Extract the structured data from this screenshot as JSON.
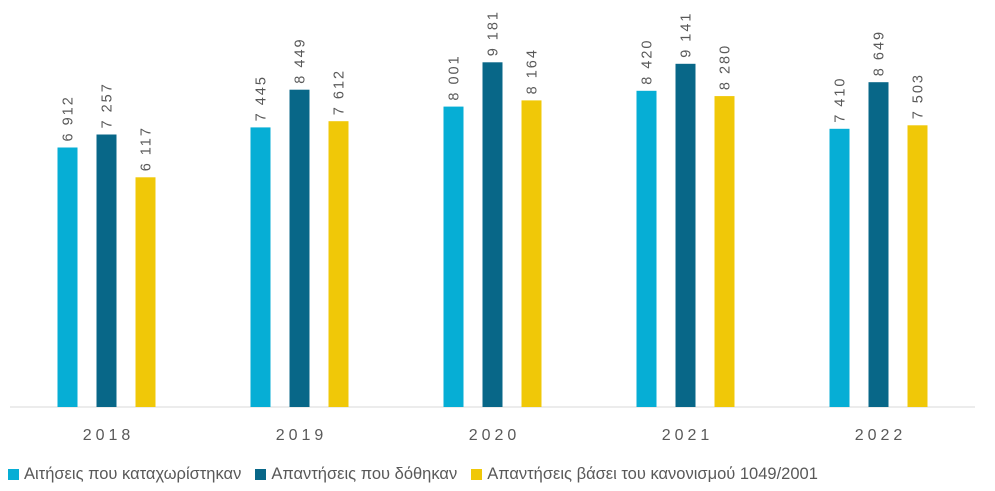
{
  "chart_data": {
    "type": "bar",
    "categories": [
      "2018",
      "2019",
      "2020",
      "2021",
      "2022"
    ],
    "series": [
      {
        "name": "Αιτήσεις που καταχωρίστηκαν",
        "color": "#06aed5",
        "values": [
          6912,
          7445,
          8001,
          8420,
          7410
        ],
        "labels": [
          "6 912",
          "7 445",
          "8 001",
          "8 420",
          "7 410"
        ]
      },
      {
        "name": "Απαντήσεις που δόθηκαν",
        "color": "#086788",
        "values": [
          7257,
          8449,
          9181,
          9141,
          8649
        ],
        "labels": [
          "7 257",
          "8 449",
          "9 181",
          "9 141",
          "8 649"
        ]
      },
      {
        "name": "Απαντήσεις βάσει του κανονισμού 1049/2001",
        "color": "#f0c808",
        "values": [
          6117,
          7612,
          8164,
          8280,
          7503
        ],
        "labels": [
          "6 117",
          "7 612",
          "8 164",
          "8 280",
          "7 503"
        ]
      }
    ],
    "ylim": [
      0,
      10200
    ],
    "grid": false,
    "legend_position": "bottom"
  }
}
